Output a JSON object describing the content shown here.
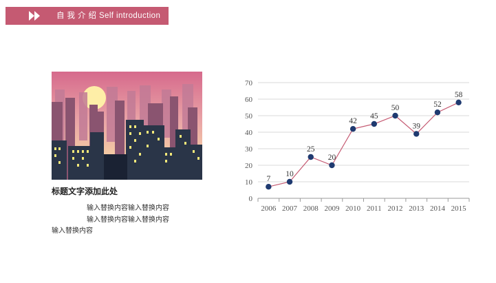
{
  "header": {
    "title": "自 我 介 绍 Self introduction",
    "icon": "double-chevron-right-icon",
    "bar_color": "#c55a72"
  },
  "card": {
    "image": "city-skyline-sunset-illustration",
    "heading": "标题文字添加此处",
    "text_lines": [
      "输入替换内容输入替换内容",
      "输入替换内容输入替换内容",
      "输入替换内容"
    ]
  },
  "chart_data": {
    "type": "line",
    "categories": [
      "2006",
      "2007",
      "2008",
      "2009",
      "2010",
      "2011",
      "2012",
      "2013",
      "2014",
      "2015"
    ],
    "series": [
      {
        "values": [
          7,
          10,
          25,
          20,
          42,
          45,
          50,
          39,
          52,
          58
        ]
      }
    ],
    "data_labels": [
      "7",
      "10",
      "25",
      "20",
      "42",
      "45",
      "50",
      "39",
      "52",
      "58"
    ],
    "yticks": [
      "0",
      "10",
      "20",
      "30",
      "40",
      "50",
      "60",
      "70"
    ],
    "ylim": [
      0,
      70
    ],
    "grid": true,
    "line_color": "#c55a72",
    "marker_color": "#1f3a70"
  }
}
